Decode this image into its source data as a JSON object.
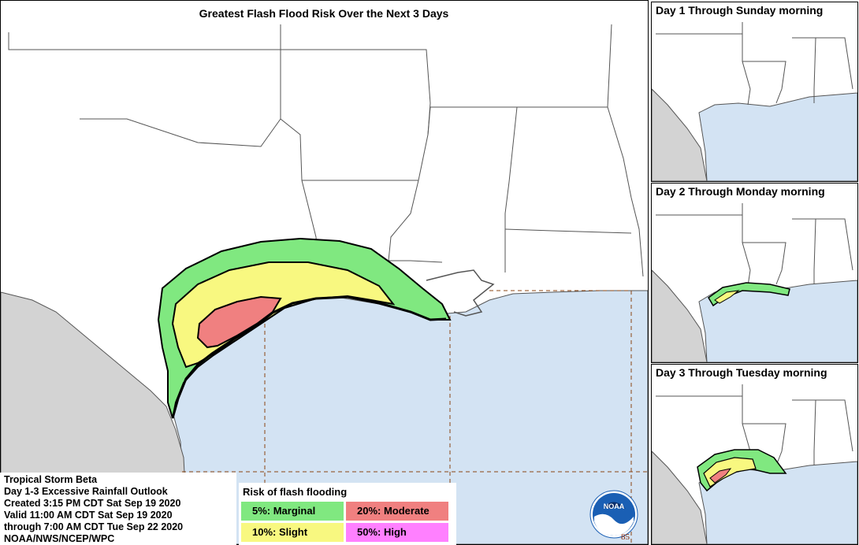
{
  "main_map": {
    "title": "Greatest Flash Flood Risk Over the Next 3 Days"
  },
  "insets": [
    {
      "title": "Day 1 Through Sunday morning",
      "has_risk": false
    },
    {
      "title": "Day 2 Through Monday morning",
      "has_risk": true
    },
    {
      "title": "Day 3 Through Tuesday morning",
      "has_risk": true
    }
  ],
  "info": {
    "line1": "Tropical Storm Beta",
    "line2": "Day 1-3 Excessive Rainfall Outlook",
    "line3": "Created 3:15 PM CDT Sat Sep 19 2020",
    "line4": "Valid 11:00 AM CDT Sat Sep 19 2020",
    "line5": "through 7:00 AM CDT Tue Sep 22 2020",
    "line6": "NOAA/NWS/NCEP/WPC"
  },
  "legend": {
    "title": "Risk of flash flooding",
    "items": [
      {
        "label": "5%: Marginal",
        "color": "#80e880"
      },
      {
        "label": "20%: Moderate",
        "color": "#f08080"
      },
      {
        "label": "10%: Slight",
        "color": "#f8f880"
      },
      {
        "label": "50%: High",
        "color": "#ff80ff"
      }
    ]
  },
  "colors": {
    "water": "#d3e3f3",
    "mexico": "#d3d3d3",
    "land": "#ffffff",
    "marginal": "#80e880",
    "slight": "#f8f880",
    "moderate": "#f08080"
  },
  "logo": {
    "text": "NOAA",
    "icon": "noaa-logo-icon"
  },
  "credit": "85"
}
